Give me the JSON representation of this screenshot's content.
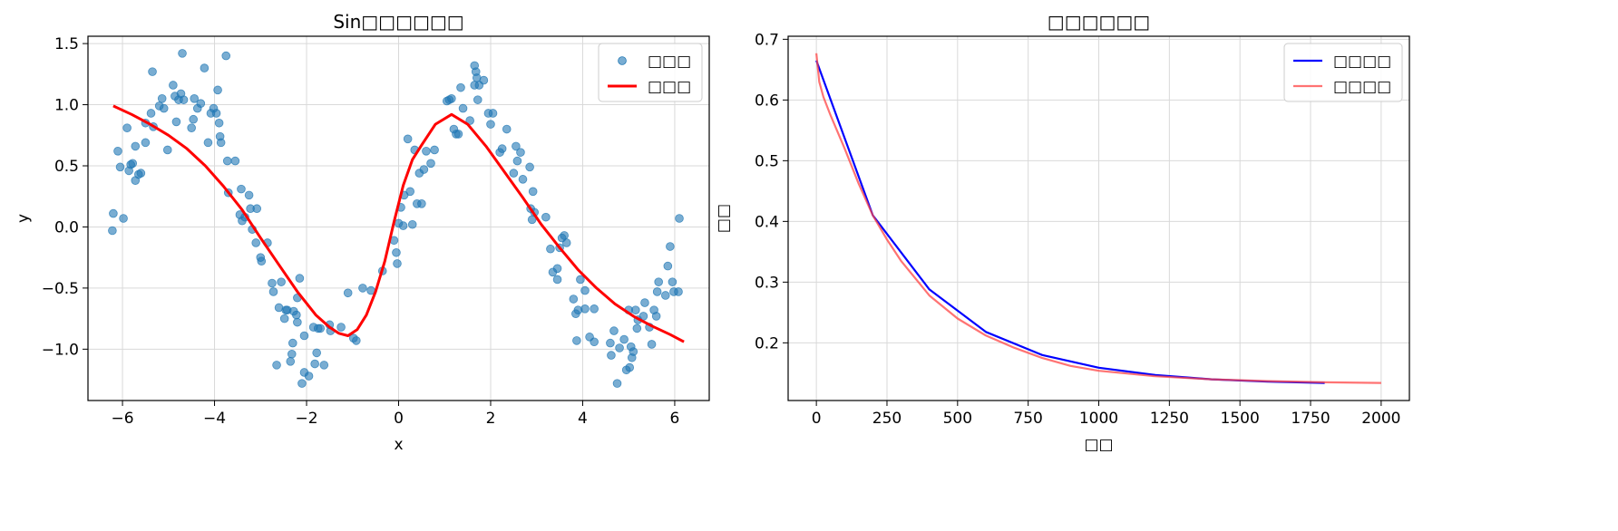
{
  "chart_data": [
    {
      "type": "scatter",
      "title": "Sin□□□□□□",
      "xlabel": "x",
      "ylabel": "y",
      "xlim": [
        -6.75,
        6.75
      ],
      "ylim": [
        -1.42,
        1.56
      ],
      "xticks": [
        -6,
        -4,
        -2,
        0,
        2,
        4,
        6
      ],
      "xtick_labels": [
        "−6",
        "−4",
        "−2",
        "0",
        "2",
        "4",
        "6"
      ],
      "yticks": [
        -1.0,
        -0.5,
        0.0,
        0.5,
        1.0,
        1.5
      ],
      "ytick_labels": [
        "−1.0",
        "−0.5",
        "0.0",
        "0.5",
        "1.0",
        "1.5"
      ],
      "grid": true,
      "legend": "top-right",
      "colors": {
        "scatter": "#1f77b4",
        "fit": "#ff0000"
      },
      "series": [
        {
          "name": "□□□",
          "kind": "scatter",
          "points": [
            [
              -6.2,
              0.11
            ],
            [
              -6.22,
              -0.03
            ],
            [
              -6.1,
              0.62
            ],
            [
              -6.05,
              0.49
            ],
            [
              -5.98,
              0.07
            ],
            [
              -5.9,
              0.81
            ],
            [
              -5.86,
              0.46
            ],
            [
              -5.82,
              0.51
            ],
            [
              -5.78,
              0.52
            ],
            [
              -5.72,
              0.38
            ],
            [
              -5.72,
              0.66
            ],
            [
              -5.65,
              0.43
            ],
            [
              -5.6,
              0.44
            ],
            [
              -5.5,
              0.85
            ],
            [
              -5.5,
              0.69
            ],
            [
              -5.38,
              0.93
            ],
            [
              -5.33,
              0.82
            ],
            [
              -5.35,
              1.27
            ],
            [
              -5.2,
              0.99
            ],
            [
              -5.14,
              1.05
            ],
            [
              -5.1,
              0.97
            ],
            [
              -5.02,
              0.63
            ],
            [
              -4.9,
              1.16
            ],
            [
              -4.86,
              1.07
            ],
            [
              -4.83,
              0.86
            ],
            [
              -4.78,
              1.04
            ],
            [
              -4.73,
              1.09
            ],
            [
              -4.7,
              1.42
            ],
            [
              -4.67,
              1.04
            ],
            [
              -4.5,
              0.81
            ],
            [
              -4.46,
              0.88
            ],
            [
              -4.44,
              1.05
            ],
            [
              -4.37,
              0.97
            ],
            [
              -4.3,
              1.01
            ],
            [
              -4.22,
              1.3
            ],
            [
              -4.14,
              0.69
            ],
            [
              -4.08,
              0.93
            ],
            [
              -4.02,
              0.97
            ],
            [
              -3.96,
              0.93
            ],
            [
              -3.93,
              1.12
            ],
            [
              -3.9,
              0.85
            ],
            [
              -3.88,
              0.74
            ],
            [
              -3.86,
              0.69
            ],
            [
              -3.75,
              1.4
            ],
            [
              -3.72,
              0.54
            ],
            [
              -3.7,
              0.28
            ],
            [
              -3.55,
              0.54
            ],
            [
              -3.45,
              0.1
            ],
            [
              -3.42,
              0.31
            ],
            [
              -3.4,
              0.05
            ],
            [
              -3.34,
              0.08
            ],
            [
              -3.25,
              0.26
            ],
            [
              -3.22,
              0.15
            ],
            [
              -3.18,
              -0.02
            ],
            [
              -3.1,
              -0.13
            ],
            [
              -3.08,
              0.15
            ],
            [
              -3.0,
              -0.25
            ],
            [
              -2.98,
              -0.28
            ],
            [
              -2.85,
              -0.13
            ],
            [
              -2.75,
              -0.46
            ],
            [
              -2.72,
              -0.53
            ],
            [
              -2.65,
              -1.13
            ],
            [
              -2.6,
              -0.66
            ],
            [
              -2.55,
              -0.45
            ],
            [
              -2.48,
              -0.75
            ],
            [
              -2.45,
              -0.68
            ],
            [
              -2.42,
              -0.68
            ],
            [
              -2.35,
              -1.1
            ],
            [
              -2.32,
              -1.04
            ],
            [
              -2.3,
              -0.95
            ],
            [
              -2.28,
              -0.69
            ],
            [
              -2.22,
              -0.72
            ],
            [
              -2.2,
              -0.78
            ],
            [
              -2.2,
              -0.58
            ],
            [
              -2.15,
              -0.42
            ],
            [
              -2.1,
              -1.28
            ],
            [
              -2.05,
              -1.19
            ],
            [
              -2.05,
              -0.89
            ],
            [
              -1.95,
              -1.22
            ],
            [
              -1.85,
              -0.82
            ],
            [
              -1.82,
              -1.12
            ],
            [
              -1.78,
              -1.03
            ],
            [
              -1.75,
              -0.83
            ],
            [
              -1.7,
              -0.83
            ],
            [
              -1.62,
              -1.13
            ],
            [
              -1.5,
              -0.8
            ],
            [
              -1.48,
              -0.85
            ],
            [
              -1.25,
              -0.82
            ],
            [
              -1.1,
              -0.54
            ],
            [
              -0.98,
              -0.91
            ],
            [
              -0.92,
              -0.93
            ],
            [
              -0.78,
              -0.5
            ],
            [
              -0.6,
              -0.52
            ],
            [
              -0.35,
              -0.36
            ],
            [
              -0.1,
              -0.11
            ],
            [
              -0.05,
              -0.21
            ],
            [
              -0.03,
              -0.3
            ],
            [
              0.0,
              0.03
            ],
            [
              0.05,
              0.16
            ],
            [
              0.1,
              0.01
            ],
            [
              0.12,
              0.26
            ],
            [
              0.2,
              0.72
            ],
            [
              0.25,
              0.29
            ],
            [
              0.3,
              0.02
            ],
            [
              0.35,
              0.63
            ],
            [
              0.4,
              0.19
            ],
            [
              0.45,
              0.44
            ],
            [
              0.5,
              0.19
            ],
            [
              0.55,
              0.47
            ],
            [
              0.6,
              0.62
            ],
            [
              0.7,
              0.52
            ],
            [
              0.78,
              0.63
            ],
            [
              1.05,
              1.03
            ],
            [
              1.1,
              1.04
            ],
            [
              1.15,
              1.05
            ],
            [
              1.2,
              0.8
            ],
            [
              1.25,
              0.76
            ],
            [
              1.3,
              0.76
            ],
            [
              1.35,
              1.14
            ],
            [
              1.4,
              0.97
            ],
            [
              1.55,
              0.87
            ],
            [
              1.65,
              1.16
            ],
            [
              1.65,
              1.32
            ],
            [
              1.68,
              1.27
            ],
            [
              1.7,
              1.22
            ],
            [
              1.72,
              1.04
            ],
            [
              1.75,
              1.16
            ],
            [
              1.85,
              1.2
            ],
            [
              1.95,
              0.93
            ],
            [
              2.0,
              0.84
            ],
            [
              2.05,
              0.93
            ],
            [
              2.2,
              0.61
            ],
            [
              2.25,
              0.64
            ],
            [
              2.35,
              0.8
            ],
            [
              2.5,
              0.44
            ],
            [
              2.55,
              0.66
            ],
            [
              2.58,
              0.54
            ],
            [
              2.65,
              0.61
            ],
            [
              2.7,
              0.39
            ],
            [
              2.85,
              0.49
            ],
            [
              2.87,
              0.15
            ],
            [
              2.9,
              0.06
            ],
            [
              2.92,
              0.29
            ],
            [
              2.95,
              0.12
            ],
            [
              3.2,
              0.08
            ],
            [
              3.3,
              -0.18
            ],
            [
              3.35,
              -0.37
            ],
            [
              3.45,
              -0.34
            ],
            [
              3.45,
              -0.43
            ],
            [
              3.5,
              -0.17
            ],
            [
              3.55,
              -0.09
            ],
            [
              3.6,
              -0.07
            ],
            [
              3.65,
              -0.13
            ],
            [
              3.8,
              -0.59
            ],
            [
              3.85,
              -0.71
            ],
            [
              3.87,
              -0.93
            ],
            [
              3.9,
              -0.68
            ],
            [
              3.95,
              -0.43
            ],
            [
              4.05,
              -0.52
            ],
            [
              4.05,
              -0.67
            ],
            [
              4.15,
              -0.9
            ],
            [
              4.25,
              -0.94
            ],
            [
              4.25,
              -0.67
            ],
            [
              4.6,
              -0.95
            ],
            [
              4.62,
              -1.05
            ],
            [
              4.68,
              -0.85
            ],
            [
              4.75,
              -1.28
            ],
            [
              4.8,
              -0.99
            ],
            [
              4.9,
              -0.92
            ],
            [
              4.95,
              -1.17
            ],
            [
              5.0,
              -0.68
            ],
            [
              5.02,
              -1.15
            ],
            [
              5.05,
              -0.98
            ],
            [
              5.07,
              -1.07
            ],
            [
              5.1,
              -1.02
            ],
            [
              5.15,
              -0.68
            ],
            [
              5.18,
              -0.83
            ],
            [
              5.2,
              -0.76
            ],
            [
              5.32,
              -0.73
            ],
            [
              5.35,
              -0.62
            ],
            [
              5.45,
              -0.82
            ],
            [
              5.5,
              -0.96
            ],
            [
              5.55,
              -0.68
            ],
            [
              5.6,
              -0.73
            ],
            [
              5.62,
              -0.53
            ],
            [
              5.65,
              -0.45
            ],
            [
              5.8,
              -0.56
            ],
            [
              5.85,
              -0.32
            ],
            [
              5.9,
              -0.16
            ],
            [
              5.95,
              -0.45
            ],
            [
              5.98,
              -0.53
            ],
            [
              6.08,
              -0.53
            ],
            [
              6.1,
              0.07
            ]
          ]
        },
        {
          "name": "□□□",
          "kind": "line",
          "x": [
            -6.2,
            -5.8,
            -5.4,
            -5.0,
            -4.6,
            -4.2,
            -3.8,
            -3.4,
            -3.0,
            -2.6,
            -2.2,
            -1.8,
            -1.5,
            -1.3,
            -1.1,
            -0.9,
            -0.7,
            -0.5,
            -0.3,
            -0.1,
            0.1,
            0.3,
            0.5,
            0.8,
            1.15,
            1.5,
            1.9,
            2.3,
            2.7,
            3.1,
            3.5,
            3.9,
            4.3,
            4.7,
            5.1,
            5.5,
            5.9,
            6.2
          ],
          "y": [
            0.99,
            0.92,
            0.84,
            0.75,
            0.64,
            0.5,
            0.33,
            0.14,
            -0.09,
            -0.31,
            -0.53,
            -0.72,
            -0.82,
            -0.87,
            -0.89,
            -0.84,
            -0.72,
            -0.53,
            -0.28,
            0.04,
            0.34,
            0.55,
            0.67,
            0.84,
            0.92,
            0.84,
            0.66,
            0.45,
            0.24,
            0.02,
            -0.17,
            -0.35,
            -0.5,
            -0.63,
            -0.73,
            -0.81,
            -0.88,
            -0.94
          ]
        }
      ]
    },
    {
      "type": "line",
      "title": "□□□□□□",
      "xlabel": "□□",
      "ylabel": "□□",
      "xlim": [
        -100,
        2100
      ],
      "ylim": [
        0.105,
        0.705
      ],
      "xticks": [
        0,
        250,
        500,
        750,
        1000,
        1250,
        1500,
        1750,
        2000
      ],
      "xtick_labels": [
        "0",
        "250",
        "500",
        "750",
        "1000",
        "1250",
        "1500",
        "1750",
        "2000"
      ],
      "yticks": [
        0.2,
        0.3,
        0.4,
        0.5,
        0.6,
        0.7
      ],
      "ytick_labels": [
        "0.2",
        "0.3",
        "0.4",
        "0.5",
        "0.6",
        "0.7"
      ],
      "grid": true,
      "legend": "top-right",
      "colors": {
        "series1": "#0000ff",
        "series2": "#ff4444"
      },
      "series": [
        {
          "name": "□□□□",
          "x": [
            0,
            200,
            400,
            600,
            800,
            1000,
            1200,
            1400,
            1600,
            1800
          ],
          "y": [
            0.665,
            0.41,
            0.288,
            0.218,
            0.18,
            0.159,
            0.147,
            0.14,
            0.136,
            0.134
          ]
        },
        {
          "name": "□□□□",
          "x": [
            0,
            10,
            25,
            50,
            100,
            150,
            200,
            250,
            300,
            400,
            500,
            600,
            700,
            800,
            900,
            1000,
            1200,
            1400,
            1600,
            1800,
            2000
          ],
          "y": [
            0.677,
            0.63,
            0.605,
            0.575,
            0.52,
            0.462,
            0.41,
            0.37,
            0.335,
            0.278,
            0.24,
            0.212,
            0.192,
            0.175,
            0.162,
            0.154,
            0.145,
            0.14,
            0.137,
            0.135,
            0.134
          ]
        }
      ]
    }
  ]
}
